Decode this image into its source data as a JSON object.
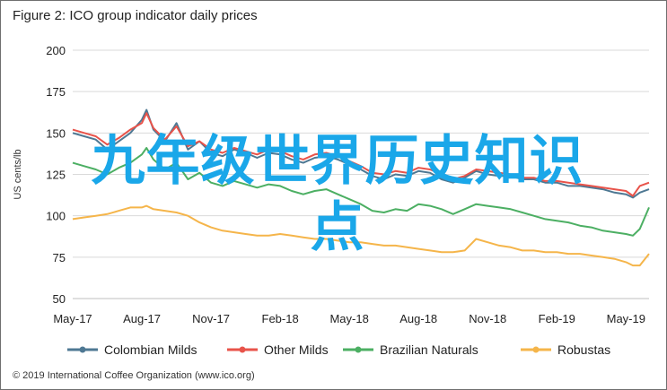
{
  "title": "Figure 2: ICO group indicator daily prices",
  "credit": "© 2019 International Coffee Organization (www.ico.org)",
  "overlay_text": {
    "line1": "九年级世界历史知识",
    "line2": "点"
  },
  "chart_data": {
    "type": "line",
    "title": "Figure 2: ICO group indicator daily prices",
    "ylabel": "US cents/lb",
    "xlabel": "",
    "ylim": [
      50,
      200
    ],
    "yticks": [
      50,
      75,
      100,
      125,
      150,
      175,
      200
    ],
    "xlim": [
      0,
      25
    ],
    "xtick_labels": [
      "May-17",
      "Aug-17",
      "Nov-17",
      "Feb-18",
      "May-18",
      "Aug-18",
      "Nov-18",
      "Feb-19",
      "May-19"
    ],
    "xtick_positions": [
      0,
      3,
      6,
      9,
      12,
      15,
      18,
      21,
      24
    ],
    "grid": true,
    "legend_position": "bottom",
    "series": [
      {
        "name": "Colombian Milds",
        "color": "#4e7893",
        "x": [
          0,
          0.5,
          1,
          1.5,
          2,
          2.5,
          3,
          3.2,
          3.5,
          4,
          4.5,
          5,
          5.5,
          6,
          6.5,
          7,
          7.5,
          8,
          8.5,
          9,
          9.5,
          10,
          10.5,
          11,
          11.5,
          12,
          12.5,
          13,
          13.5,
          14,
          14.5,
          15,
          15.5,
          16,
          16.5,
          17,
          17.5,
          18,
          18.5,
          19,
          19.5,
          20,
          20.5,
          21,
          21.5,
          22,
          22.5,
          23,
          23.5,
          24,
          24.3,
          24.6,
          25
        ],
        "y": [
          150,
          148,
          146,
          140,
          145,
          150,
          158,
          164,
          152,
          145,
          156,
          140,
          145,
          138,
          136,
          140,
          138,
          135,
          138,
          137,
          134,
          132,
          135,
          136,
          134,
          131,
          128,
          124,
          122,
          125,
          124,
          127,
          126,
          122,
          120,
          123,
          127,
          125,
          124,
          124,
          122,
          122,
          120,
          120,
          118,
          118,
          117,
          116,
          114,
          113,
          111,
          114,
          116
        ]
      },
      {
        "name": "Other Milds",
        "color": "#e8534a",
        "x": [
          0,
          0.5,
          1,
          1.5,
          2,
          2.5,
          3,
          3.2,
          3.5,
          4,
          4.5,
          5,
          5.5,
          6,
          6.5,
          7,
          7.5,
          8,
          8.5,
          9,
          9.5,
          10,
          10.5,
          11,
          11.5,
          12,
          12.5,
          13,
          13.5,
          14,
          14.5,
          15,
          15.5,
          16,
          16.5,
          17,
          17.5,
          18,
          18.5,
          19,
          19.5,
          20,
          20.5,
          21,
          21.5,
          22,
          22.5,
          23,
          23.5,
          24,
          24.3,
          24.6,
          25
        ],
        "y": [
          152,
          150,
          148,
          143,
          147,
          152,
          156,
          162,
          153,
          146,
          154,
          142,
          145,
          140,
          138,
          141,
          139,
          137,
          140,
          139,
          136,
          134,
          137,
          138,
          136,
          133,
          130,
          126,
          125,
          127,
          126,
          129,
          128,
          125,
          122,
          124,
          128,
          127,
          126,
          125,
          123,
          123,
          121,
          121,
          120,
          119,
          118,
          117,
          116,
          115,
          112,
          118,
          120
        ]
      },
      {
        "name": "Brazilian Naturals",
        "color": "#4caf63",
        "x": [
          0,
          0.5,
          1,
          1.5,
          2,
          2.5,
          3,
          3.2,
          3.5,
          4,
          4.5,
          5,
          5.5,
          6,
          6.5,
          7,
          7.5,
          8,
          8.5,
          9,
          9.5,
          10,
          10.5,
          11,
          11.5,
          12,
          12.5,
          13,
          13.5,
          14,
          14.5,
          15,
          15.5,
          16,
          16.5,
          17,
          17.5,
          18,
          18.5,
          19,
          19.5,
          20,
          20.5,
          21,
          21.5,
          22,
          22.5,
          23,
          23.5,
          24,
          24.3,
          24.6,
          25
        ],
        "y": [
          132,
          130,
          128,
          125,
          129,
          132,
          137,
          141,
          134,
          128,
          132,
          122,
          126,
          120,
          118,
          121,
          119,
          117,
          119,
          118,
          115,
          113,
          115,
          116,
          113,
          110,
          107,
          103,
          102,
          104,
          103,
          107,
          106,
          104,
          101,
          104,
          107,
          106,
          105,
          104,
          102,
          100,
          98,
          97,
          96,
          94,
          93,
          91,
          90,
          89,
          88,
          92,
          105
        ]
      },
      {
        "name": "Robustas",
        "color": "#f5b54a",
        "x": [
          0,
          0.5,
          1,
          1.5,
          2,
          2.5,
          3,
          3.2,
          3.5,
          4,
          4.5,
          5,
          5.5,
          6,
          6.5,
          7,
          7.5,
          8,
          8.5,
          9,
          9.5,
          10,
          10.5,
          11,
          11.5,
          12,
          12.5,
          13,
          13.5,
          14,
          14.5,
          15,
          15.5,
          16,
          16.5,
          17,
          17.5,
          18,
          18.5,
          19,
          19.5,
          20,
          20.5,
          21,
          21.5,
          22,
          22.5,
          23,
          23.5,
          24,
          24.3,
          24.6,
          25
        ],
        "y": [
          98,
          99,
          100,
          101,
          103,
          105,
          105,
          106,
          104,
          103,
          102,
          100,
          96,
          93,
          91,
          90,
          89,
          88,
          88,
          89,
          88,
          87,
          86,
          86,
          85,
          84,
          84,
          83,
          82,
          82,
          81,
          80,
          79,
          78,
          78,
          79,
          86,
          84,
          82,
          81,
          79,
          79,
          78,
          78,
          77,
          77,
          76,
          75,
          74,
          72,
          70,
          70,
          77
        ]
      }
    ]
  }
}
